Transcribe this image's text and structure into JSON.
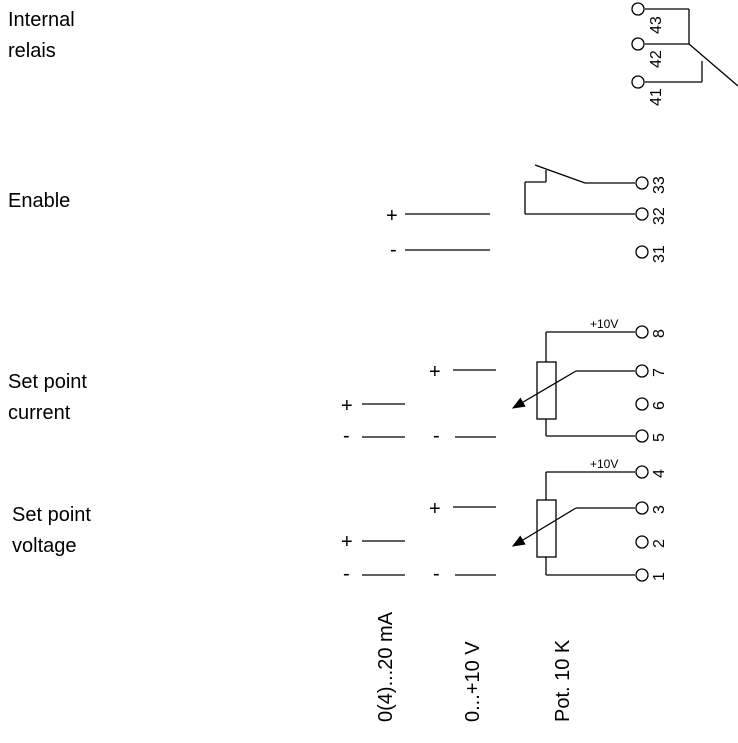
{
  "labels": {
    "internal_relais_1": "Internal",
    "internal_relais_2": "relais",
    "enable": "Enable",
    "set_point_current_1": "Set point",
    "set_point_current_2": "current",
    "set_point_voltage_1": "Set point",
    "set_point_voltage_2": "voltage"
  },
  "terminals": {
    "t43": "43",
    "t42": "42",
    "t41": "41",
    "t33": "33",
    "t32": "32",
    "t31": "31",
    "t8": "8",
    "t7": "7",
    "t6": "6",
    "t5": "5",
    "t4": "4",
    "t3": "3",
    "t2": "2",
    "t1": "1"
  },
  "supply": {
    "plus10v_a": "+10V",
    "plus10v_b": "+10V"
  },
  "signs": {
    "plus": "+",
    "minus": "-"
  },
  "bottom_labels": {
    "current_range": "0(4)...20 mA",
    "voltage_range": "0...+10 V",
    "potentiometer": "Pot.  10 K"
  }
}
